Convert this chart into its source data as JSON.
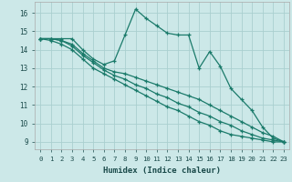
{
  "xlabel": "Humidex (Indice chaleur)",
  "bg_color": "#cce8e8",
  "grid_color": "#aacfcf",
  "line_color": "#1a7a6a",
  "xlim": [
    -0.5,
    23.5
  ],
  "ylim": [
    8.6,
    16.6
  ],
  "yticks": [
    9,
    10,
    11,
    12,
    13,
    14,
    15,
    16
  ],
  "xticks": [
    0,
    1,
    2,
    3,
    4,
    5,
    6,
    7,
    8,
    9,
    10,
    11,
    12,
    13,
    14,
    15,
    16,
    17,
    18,
    19,
    20,
    21,
    22,
    23
  ],
  "series": [
    [
      14.6,
      14.6,
      14.6,
      14.6,
      14.0,
      13.5,
      13.2,
      13.4,
      14.8,
      16.2,
      15.7,
      15.3,
      14.9,
      14.8,
      14.8,
      13.0,
      13.9,
      13.1,
      11.9,
      11.3,
      10.7,
      9.8,
      9.2,
      9.0
    ],
    [
      14.6,
      14.6,
      14.5,
      14.3,
      13.8,
      13.4,
      13.0,
      12.8,
      12.7,
      12.5,
      12.3,
      12.1,
      11.9,
      11.7,
      11.5,
      11.3,
      11.0,
      10.7,
      10.4,
      10.1,
      9.8,
      9.5,
      9.3,
      9.0
    ],
    [
      14.6,
      14.6,
      14.5,
      14.2,
      13.7,
      13.3,
      12.9,
      12.6,
      12.4,
      12.1,
      11.9,
      11.6,
      11.4,
      11.1,
      10.9,
      10.6,
      10.4,
      10.1,
      9.9,
      9.6,
      9.4,
      9.2,
      9.1,
      9.0
    ],
    [
      14.6,
      14.5,
      14.3,
      14.0,
      13.5,
      13.0,
      12.7,
      12.4,
      12.1,
      11.8,
      11.5,
      11.2,
      10.9,
      10.7,
      10.4,
      10.1,
      9.9,
      9.6,
      9.4,
      9.3,
      9.2,
      9.1,
      9.0,
      9.0
    ]
  ]
}
